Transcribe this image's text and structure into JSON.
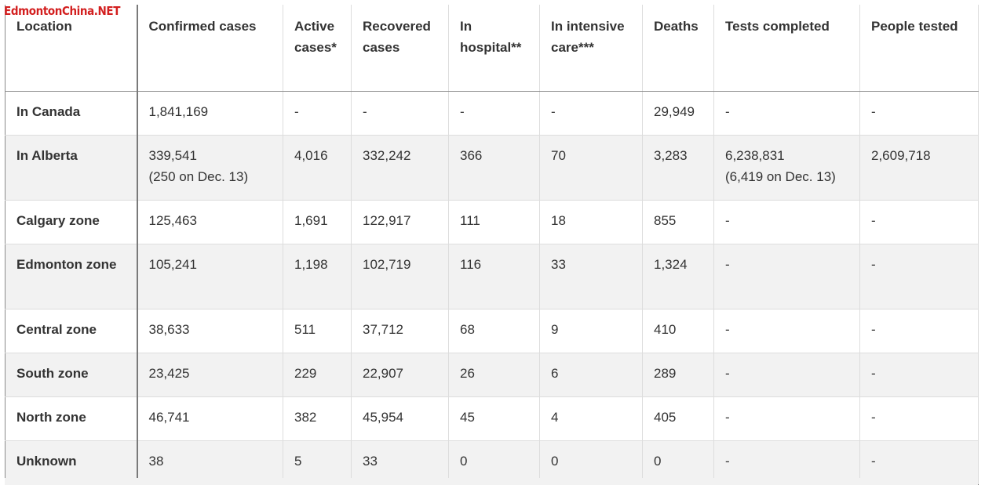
{
  "watermark": "EdmontonChina.NET",
  "headers": {
    "location": "Location",
    "confirmed": "Confirmed cases",
    "active": "Active cases*",
    "recovered": "Recovered cases",
    "hospital": "In hospital**",
    "icu": "In intensive care***",
    "deaths": "Deaths",
    "tests": "Tests completed",
    "people": "People tested"
  },
  "rows": [
    {
      "location": "In Canada",
      "confirmed": "1,841,169",
      "confirmed_note": "",
      "active": "-",
      "recovered": "-",
      "hospital": "-",
      "icu": "-",
      "deaths": "29,949",
      "tests": "-",
      "tests_note": "",
      "people": "-"
    },
    {
      "location": "In Alberta",
      "confirmed": "339,541",
      "confirmed_note": "(250 on Dec. 13)",
      "active": "4,016",
      "recovered": "332,242",
      "hospital": "366",
      "icu": "70",
      "deaths": "3,283",
      "tests": "6,238,831",
      "tests_note": "(6,419 on Dec. 13)",
      "people": "2,609,718"
    },
    {
      "location": "Calgary zone",
      "confirmed": "125,463",
      "confirmed_note": "",
      "active": "1,691",
      "recovered": "122,917",
      "hospital": "111",
      "icu": "18",
      "deaths": "855",
      "tests": "-",
      "tests_note": "",
      "people": "-"
    },
    {
      "location": "Edmonton zone",
      "confirmed": "105,241",
      "confirmed_note": "",
      "active": "1,198",
      "recovered": "102,719",
      "hospital": "116",
      "icu": "33",
      "deaths": "1,324",
      "tests": "-",
      "tests_note": "",
      "people": "-"
    },
    {
      "location": "Central zone",
      "confirmed": "38,633",
      "confirmed_note": "",
      "active": "511",
      "recovered": "37,712",
      "hospital": "68",
      "icu": "9",
      "deaths": "410",
      "tests": "-",
      "tests_note": "",
      "people": "-"
    },
    {
      "location": "South zone",
      "confirmed": "23,425",
      "confirmed_note": "",
      "active": "229",
      "recovered": "22,907",
      "hospital": "26",
      "icu": "6",
      "deaths": "289",
      "tests": "-",
      "tests_note": "",
      "people": "-"
    },
    {
      "location": "North zone",
      "confirmed": "46,741",
      "confirmed_note": "",
      "active": "382",
      "recovered": "45,954",
      "hospital": "45",
      "icu": "4",
      "deaths": "405",
      "tests": "-",
      "tests_note": "",
      "people": "-"
    },
    {
      "location": "Unknown",
      "confirmed": "38",
      "confirmed_note": "",
      "active": "5",
      "recovered": "33",
      "hospital": "0",
      "icu": "0",
      "deaths": "0",
      "tests": "-",
      "tests_note": "",
      "people": "-"
    }
  ]
}
